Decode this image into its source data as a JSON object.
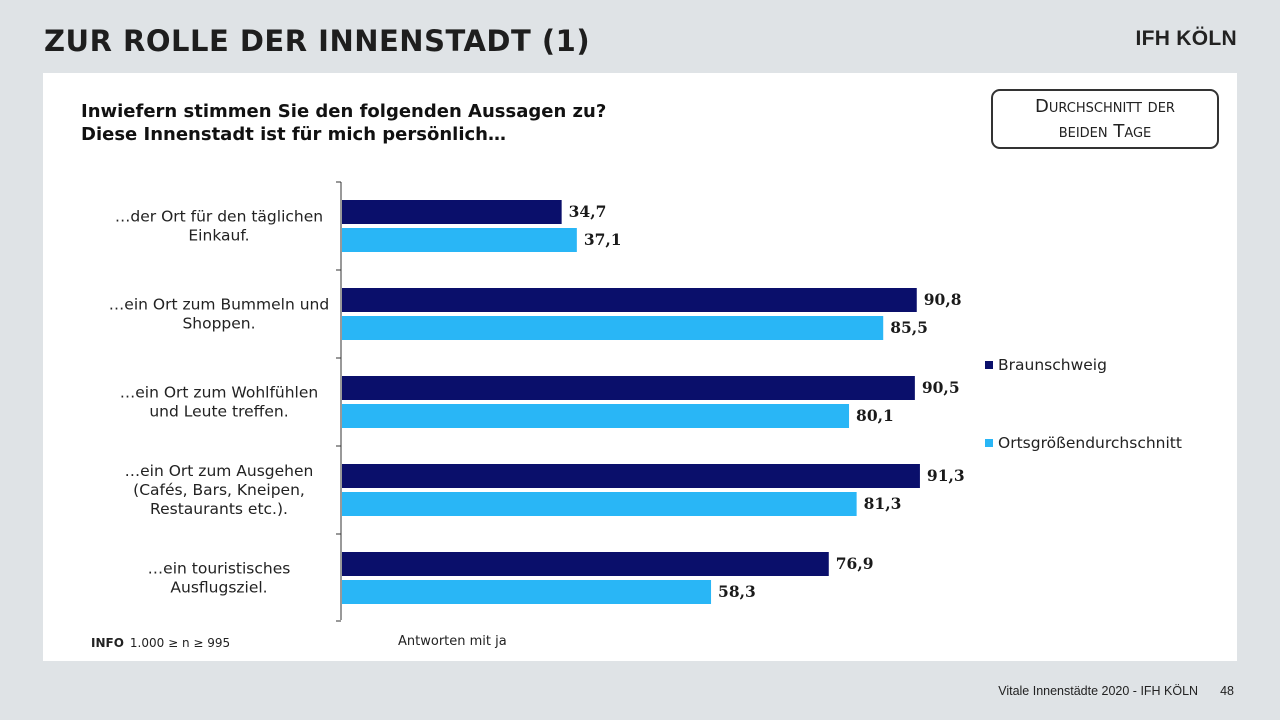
{
  "header": {
    "title": "ZUR ROLLE DER INNENSTADT (1)",
    "brand": "IFH KÖLN"
  },
  "question": {
    "line1": "Inwiefern stimmen Sie den folgenden Aussagen zu?",
    "line2": "Diese Innenstadt ist für mich persönlich…"
  },
  "avg_box": {
    "text": "Durchschnitt der\nbeiden Tage"
  },
  "info": {
    "label": "INFO",
    "text": "1.000 ≥ n ≥ 995"
  },
  "footer": {
    "source": "Vitale Innenstädte 2020 - IFH KÖLN",
    "page": "48"
  },
  "colors": {
    "series1": "#0a0f6b",
    "series2": "#29b6f6",
    "axis": "#333333"
  },
  "chart_data": {
    "type": "bar",
    "orientation": "horizontal",
    "categories": [
      [
        "…der Ort für den täglichen",
        "Einkauf."
      ],
      [
        "…ein Ort zum Bummeln und",
        "Shoppen."
      ],
      [
        "…ein Ort zum Wohlfühlen",
        "und Leute treffen."
      ],
      [
        "…ein Ort zum Ausgehen",
        "(Cafés, Bars, Kneipen,",
        "Restaurants etc.)."
      ],
      [
        "…ein touristisches",
        "Ausflugsziel."
      ]
    ],
    "series": [
      {
        "name": "Braunschweig",
        "values": [
          34.7,
          90.8,
          90.5,
          91.3,
          76.9
        ]
      },
      {
        "name": "Ortsgrößendurchschnitt",
        "values": [
          37.1,
          85.5,
          80.1,
          81.3,
          58.3
        ]
      }
    ],
    "data_labels": [
      [
        "34,7",
        "90,8",
        "90,5",
        "91,3",
        "76,9"
      ],
      [
        "37,1",
        "85,5",
        "80,1",
        "81,3",
        "58,3"
      ]
    ],
    "xlabel": "Antworten mit ja",
    "xlim": [
      0,
      100
    ],
    "legend": "right",
    "grid": false
  }
}
